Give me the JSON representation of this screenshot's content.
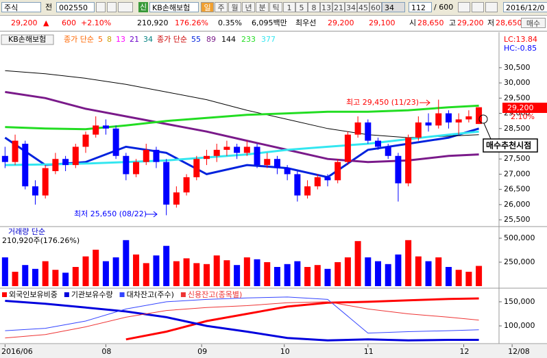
{
  "toolbar": {
    "market": "주식",
    "prefix": "전",
    "code": "002550",
    "badge": "신",
    "name": "KB손해보험",
    "periods": [
      "일",
      "주",
      "월",
      "년",
      "분",
      "틱"
    ],
    "intervals": [
      "1",
      "5",
      "8",
      "13",
      "21",
      "34",
      "45",
      "60"
    ],
    "interval_select": "34",
    "count": "112",
    "total": "/ 600",
    "date": "2016/12/0"
  },
  "quote": {
    "price": "29,200",
    "change_sign": "▲",
    "change": "600",
    "rate": "+2.10%",
    "volume": "210,920",
    "volume_ratio": "176.26%",
    "turnover": "0.35%",
    "amount": "6,095백만",
    "best_label": "최우선",
    "ask": "29,200",
    "bid": "29,100",
    "open_label": "시",
    "open": "28,650",
    "high_label": "고",
    "high": "29,200",
    "low_label": "저",
    "low": "28,650",
    "order": "매수"
  },
  "chart_data": [
    {
      "type": "candlestick",
      "title": "KB손해보험",
      "open": [
        27600,
        27400,
        28000,
        26600,
        26300,
        27100,
        27500,
        27300,
        27900,
        28300,
        28600,
        28500,
        27600,
        27000,
        27400,
        27800,
        27400,
        26000,
        26400,
        26900,
        27500,
        27600,
        27800,
        27900,
        27700,
        27900,
        27300,
        27500,
        27200,
        27000,
        26300,
        26600,
        26900,
        26800,
        27400,
        28300,
        28700,
        28100,
        27900,
        27600,
        26700,
        28200,
        28700,
        28600,
        29000,
        28700,
        28800,
        28650
      ],
      "high": [
        27900,
        28300,
        28100,
        26800,
        27300,
        27700,
        27600,
        28000,
        28400,
        28900,
        28800,
        28600,
        27700,
        27500,
        28000,
        27900,
        27500,
        26600,
        27000,
        27600,
        27800,
        28000,
        28100,
        28000,
        28100,
        28000,
        27700,
        27600,
        27300,
        27100,
        26800,
        27000,
        27000,
        27500,
        28400,
        28900,
        28800,
        28200,
        28000,
        27700,
        28300,
        28900,
        29000,
        29450,
        29100,
        29000,
        29100,
        29200
      ],
      "low": [
        27200,
        27300,
        26500,
        26000,
        26200,
        27000,
        27100,
        27200,
        27700,
        28200,
        28300,
        27500,
        26800,
        26900,
        27300,
        27200,
        25650,
        25900,
        26300,
        26800,
        27300,
        27400,
        27600,
        27500,
        27600,
        27200,
        27200,
        27000,
        26800,
        26100,
        26200,
        26500,
        26600,
        26700,
        27300,
        28200,
        28000,
        27800,
        27500,
        26100,
        26600,
        28100,
        28400,
        28500,
        28500,
        28300,
        28700,
        28650
      ],
      "close": [
        27400,
        28100,
        26600,
        26300,
        27200,
        27500,
        27300,
        27900,
        28300,
        28600,
        28500,
        27600,
        27000,
        27400,
        27800,
        27400,
        26000,
        26400,
        26900,
        27500,
        27600,
        27800,
        27900,
        27700,
        27900,
        27300,
        27500,
        27200,
        27000,
        26300,
        26600,
        26900,
        26800,
        27400,
        28300,
        28700,
        28100,
        27900,
        27600,
        26700,
        28200,
        28700,
        28600,
        29000,
        28700,
        28800,
        28900,
        29200
      ],
      "up_color": "#ff0000",
      "down_color": "#0000ff",
      "xlim": [
        -0.5,
        49
      ],
      "ylim": [
        25300,
        31600
      ],
      "yticks": [
        {
          "value": 25500,
          "label": "25,500"
        },
        {
          "value": 26000,
          "label": "26,000"
        },
        {
          "value": 26500,
          "label": "26,500"
        },
        {
          "value": 27000,
          "label": "27,000"
        },
        {
          "value": 27500,
          "label": "27,500"
        },
        {
          "value": 28000,
          "label": "28,000"
        },
        {
          "value": 28500,
          "label": "28,500"
        },
        {
          "value": 29000,
          "label": "29,000"
        },
        {
          "value": 29500,
          "label": "29,500"
        },
        {
          "value": 30000,
          "label": "30,000"
        },
        {
          "value": 30500,
          "label": "30,500"
        }
      ],
      "ma_legend": {
        "name": "종가 단순",
        "periods": [
          "5",
          "8",
          "13",
          "21",
          "34"
        ],
        "colors": [
          "#ff6600",
          "#c8a000",
          "#ff00ff",
          "#6a00c8",
          "#008080"
        ]
      },
      "series_legend_name": "종가 단순",
      "series": [
        {
          "name": "55",
          "color": "#0022dd",
          "width": 3,
          "x": [
            0,
            4,
            8,
            12,
            16,
            20,
            24,
            28,
            32,
            36,
            40,
            44,
            47
          ],
          "values": [
            28200,
            27300,
            27400,
            27900,
            27700,
            27000,
            27300,
            27200,
            26900,
            27800,
            28000,
            28200,
            28500
          ]
        },
        {
          "name": "89",
          "color": "#7a1a8a",
          "width": 3,
          "x": [
            0,
            4,
            8,
            12,
            16,
            20,
            24,
            28,
            32,
            36,
            40,
            44,
            47
          ],
          "values": [
            29700,
            29500,
            29150,
            28900,
            28650,
            28400,
            28100,
            27800,
            27500,
            27400,
            27450,
            27600,
            27650
          ]
        },
        {
          "name": "144",
          "color": "#000000",
          "width": 1,
          "x": [
            0,
            4,
            8,
            12,
            16,
            20,
            24,
            28,
            32,
            36,
            40,
            44,
            47
          ],
          "values": [
            30400,
            30300,
            30150,
            29950,
            29700,
            29450,
            29100,
            28800,
            28500,
            28300,
            28200,
            28250,
            28300
          ]
        },
        {
          "name": "233",
          "color": "#22dd22",
          "width": 3,
          "x": [
            0,
            4,
            8,
            12,
            16,
            20,
            24,
            28,
            32,
            36,
            40,
            44,
            47
          ],
          "values": [
            28550,
            28500,
            28480,
            28600,
            28750,
            28850,
            28950,
            29000,
            29050,
            29050,
            29100,
            29200,
            29250
          ]
        },
        {
          "name": "377",
          "color": "#33e6f0",
          "width": 3,
          "x": [
            0,
            4,
            8,
            12,
            16,
            20,
            24,
            28,
            32,
            36,
            40,
            44,
            47
          ],
          "values": [
            27300,
            27320,
            27350,
            27400,
            27450,
            27550,
            27650,
            27800,
            27900,
            28000,
            28150,
            28300,
            28400
          ]
        }
      ],
      "annotations": [
        {
          "text": "최고 29,450 (11/23)",
          "color": "#ff0000"
        },
        {
          "text": "최저 25,650 (08/22)",
          "color": "#0000ff"
        }
      ],
      "price_label": "29,200",
      "change_label": "2.10%",
      "lc": "LC:13.84",
      "hc": "HC:-0.85",
      "callout": "매수추천시점"
    },
    {
      "type": "bar",
      "title": "거래량 단순",
      "subtitle": "210,920주(176.26%)",
      "values": [
        300000,
        150000,
        220000,
        180000,
        260000,
        170000,
        140000,
        200000,
        310000,
        380000,
        260000,
        300000,
        480000,
        330000,
        240000,
        320000,
        420000,
        260000,
        290000,
        240000,
        230000,
        320000,
        270000,
        220000,
        300000,
        280000,
        250000,
        200000,
        230000,
        260000,
        200000,
        220000,
        180000,
        250000,
        300000,
        470000,
        300000,
        260000,
        230000,
        330000,
        480000,
        310000,
        260000,
        300000,
        200000,
        170000,
        150000,
        210920
      ],
      "xlim": [
        -0.5,
        49
      ],
      "ylim": [
        0,
        600000
      ],
      "yticks": [
        {
          "value": 250000,
          "label": "250,000"
        },
        {
          "value": 500000,
          "label": "500,000"
        }
      ]
    },
    {
      "type": "line",
      "series": [
        {
          "name": "외국인보유비중",
          "color": "#ff0000",
          "width": 3,
          "x": [
            0,
            4,
            8,
            12,
            16,
            20,
            24,
            28,
            32,
            36,
            40,
            44,
            47
          ],
          "values": [
            null,
            null,
            null,
            72000,
            88000,
            110000,
            125000,
            140000,
            148000,
            150000,
            153000,
            156000,
            157000
          ]
        },
        {
          "name": "기관보유수량",
          "color": "#0000dd",
          "width": 3,
          "x": [
            0,
            4,
            8,
            12,
            16,
            20,
            24,
            28,
            32,
            36,
            40,
            44,
            47
          ],
          "values": [
            152000,
            146000,
            138000,
            130000,
            118000,
            100000,
            88000,
            75000,
            70000,
            72000,
            70000,
            71000,
            71000
          ]
        },
        {
          "name": "대차잔고(주수)",
          "color": "#3344ff",
          "width": 1,
          "x": [
            0,
            4,
            8,
            12,
            16,
            20,
            24,
            28,
            32,
            36,
            40,
            44,
            47
          ],
          "values": [
            90000,
            95000,
            110000,
            135000,
            150000,
            155000,
            158000,
            160000,
            155000,
            85000,
            88000,
            90000,
            92000
          ]
        },
        {
          "name": "신용잔고(종목별)",
          "color": "#ee3333",
          "width": 1,
          "x": [
            0,
            4,
            8,
            12,
            16,
            20,
            24,
            28,
            32,
            36,
            40,
            44,
            47
          ],
          "values": [
            75000,
            82000,
            98000,
            118000,
            132000,
            138000,
            142000,
            148000,
            150000,
            135000,
            125000,
            118000,
            112000
          ]
        }
      ],
      "xlim": [
        -0.5,
        49
      ],
      "ylim": [
        66000,
        174000
      ],
      "yticks": [
        {
          "value": 100000,
          "label": "100,000"
        },
        {
          "value": 150000,
          "label": "150,000"
        }
      ],
      "xticks": [
        {
          "value": 0,
          "label": "2016/06"
        },
        {
          "value": 10,
          "label": "08"
        },
        {
          "value": 19.5,
          "label": "09"
        },
        {
          "value": 27.7,
          "label": "10"
        },
        {
          "value": 36,
          "label": "11"
        },
        {
          "value": 45.5,
          "label": "12"
        },
        {
          "value": 50.3,
          "label": "12/08"
        }
      ]
    }
  ]
}
